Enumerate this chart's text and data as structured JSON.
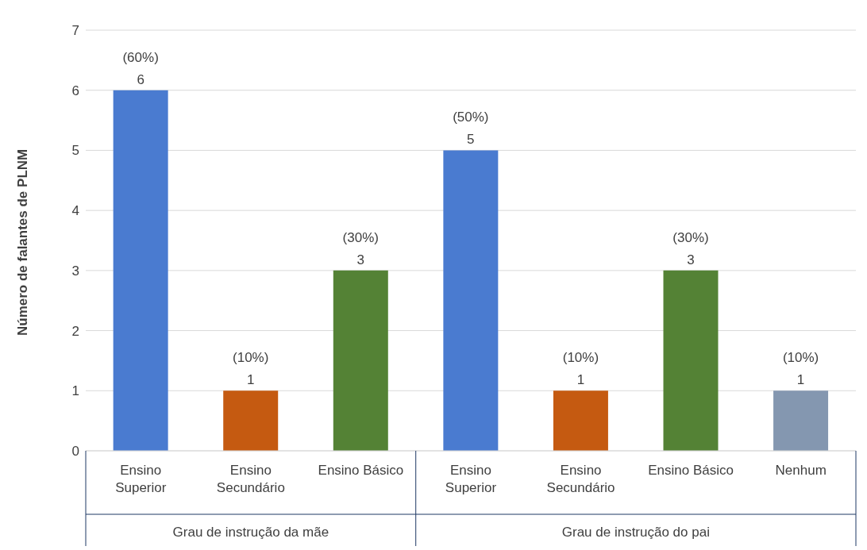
{
  "chart_data": {
    "type": "bar",
    "categories": [
      "Ensino Superior",
      "Ensino Secundário",
      "Ensino Básico",
      "Ensino Superior",
      "Ensino Secundário",
      "Ensino Básico",
      "Nenhum"
    ],
    "values": [
      6,
      1,
      3,
      5,
      1,
      3,
      1
    ],
    "colors": [
      "#4a7bd0",
      "#c55a11",
      "#548235",
      "#4a7bd0",
      "#c55a11",
      "#548235",
      "#8497b0"
    ],
    "value_labels": [
      "(60%)\n6",
      "(10%)\n1",
      "(30%)\n3",
      "(50%)\n5",
      "(10%)\n1",
      "(30%)\n3",
      "(10%)\n1"
    ],
    "ylabel": "Número de falantes de PLNM",
    "ylim": [
      0,
      7
    ],
    "yticks": [
      0,
      1,
      2,
      3,
      4,
      5,
      6,
      7
    ],
    "grid": "y",
    "annotations": [
      "Grau de instrução da mãe",
      "Grau de instrução do pai"
    ]
  }
}
